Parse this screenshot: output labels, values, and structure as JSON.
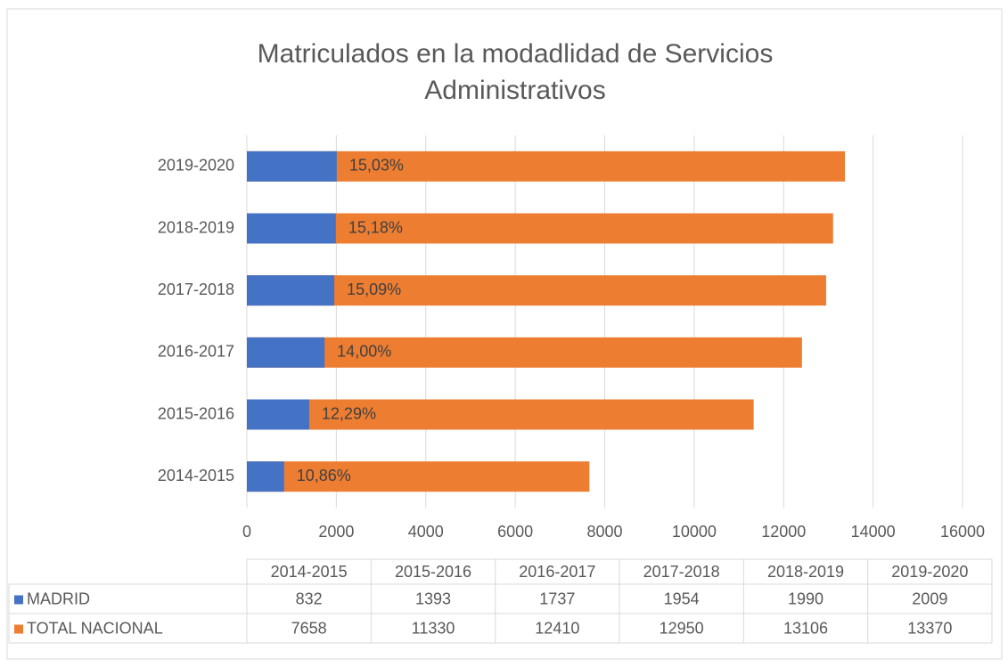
{
  "chart_data": {
    "type": "bar",
    "orientation": "horizontal",
    "title": "Matriculados en la modadlidad de Servicios Administrativos",
    "categories": [
      "2014-2015",
      "2015-2016",
      "2016-2017",
      "2017-2018",
      "2018-2019",
      "2019-2020"
    ],
    "series": [
      {
        "name": "MADRID",
        "color": "#4472c4",
        "values": [
          832,
          1393,
          1737,
          1954,
          1990,
          2009
        ]
      },
      {
        "name": "TOTAL NACIONAL",
        "color": "#ed7d31",
        "values": [
          7658,
          11330,
          12410,
          12950,
          13106,
          13370
        ]
      }
    ],
    "data_labels": {
      "values": [
        10.86,
        12.29,
        14.0,
        15.09,
        15.18,
        15.03
      ],
      "value_labels": [
        "10,86%",
        "12,29%",
        "14,00%",
        "15,09%",
        "15,18%",
        "15,03%"
      ]
    },
    "xlim": [
      0,
      16000
    ],
    "xticks": [
      0,
      2000,
      4000,
      6000,
      8000,
      10000,
      12000,
      14000,
      16000
    ],
    "grid": true,
    "data_table": true
  }
}
